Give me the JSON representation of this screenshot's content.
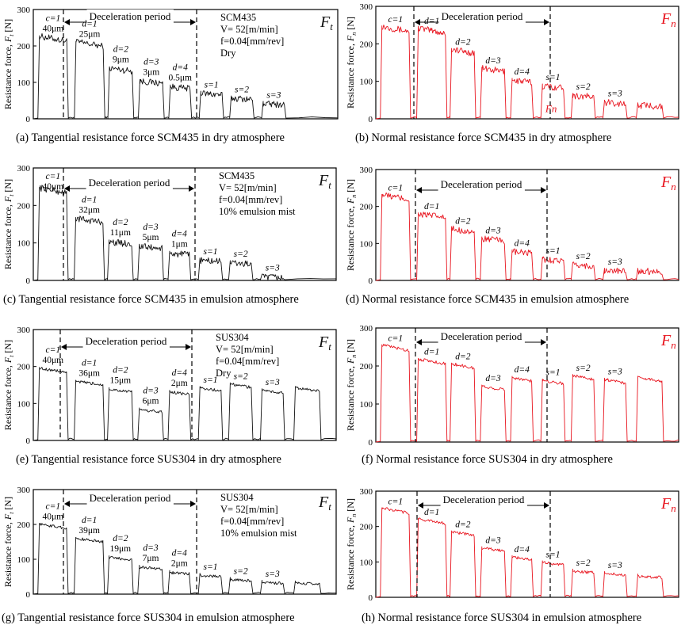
{
  "colors": {
    "tangential": "#111111",
    "normal": "#e8141e"
  },
  "common": {
    "ylabel_prefix": "Resistance force, ",
    "ylabel_unit": " [N]",
    "yticks": [
      0,
      100,
      200,
      300
    ]
  },
  "chart_data": [
    {
      "id": "a",
      "type": "line",
      "component": "t",
      "force_label": "F",
      "caption": "(a) Tangential resistance force SCM435 in dry atmosphere",
      "title": "Deceleration period",
      "info": [
        "SCM435",
        "V= 52[m/min]",
        "f=0.04[mm/rev]",
        "Dry"
      ],
      "ylim": [
        0,
        300
      ],
      "segments": [
        {
          "label": "c=1",
          "sub": "40μm",
          "value": 220
        },
        {
          "label": "d=1",
          "sub": "25μm",
          "value": 205
        },
        {
          "label": "d=2",
          "sub": "9μm",
          "value": 135
        },
        {
          "label": "d=3",
          "sub": "3μm",
          "value": 100
        },
        {
          "label": "d=4",
          "sub": "0.5μm",
          "value": 85
        },
        {
          "label": "s=1",
          "sub": "",
          "value": 68
        },
        {
          "label": "s=2",
          "sub": "",
          "value": 55
        },
        {
          "label": "s=3",
          "sub": "",
          "value": 40
        }
      ]
    },
    {
      "id": "b",
      "type": "line",
      "component": "n",
      "force_label": "F",
      "caption": "(b) Normal resistance force SCM435 in dry atmosphere",
      "title": "Deceleration period",
      "info": [],
      "inline_label": "Fn",
      "ylim": [
        0,
        300
      ],
      "segments": [
        {
          "label": "c=1",
          "sub": "",
          "value": 240
        },
        {
          "label": "d=1",
          "sub": "",
          "value": 235
        },
        {
          "label": "d=2",
          "sub": "",
          "value": 180
        },
        {
          "label": "d=3",
          "sub": "",
          "value": 130
        },
        {
          "label": "d=4",
          "sub": "",
          "value": 100
        },
        {
          "label": "s=1",
          "sub": "",
          "value": 85
        },
        {
          "label": "s=2",
          "sub": "",
          "value": 60
        },
        {
          "label": "s=3",
          "sub": "",
          "value": 42
        },
        {
          "label": "",
          "sub": "",
          "value": 35
        }
      ]
    },
    {
      "id": "c",
      "type": "line",
      "component": "t",
      "force_label": "F",
      "caption": "(c) Tangential resistance force SCM435 in emulsion atmosphere",
      "title": "Deceleration period",
      "info": [
        "SCM435",
        "V= 52[m/min]",
        "f=0.04[mm/rev]",
        "10% emulsion mist"
      ],
      "ylim": [
        0,
        300
      ],
      "segments": [
        {
          "label": "c=1",
          "sub": "40μm",
          "value": 240
        },
        {
          "label": "d=1",
          "sub": "32μm",
          "value": 160
        },
        {
          "label": "d=2",
          "sub": "11μm",
          "value": 100
        },
        {
          "label": "d=3",
          "sub": "5μm",
          "value": 88
        },
        {
          "label": "d=4",
          "sub": "1μm",
          "value": 70
        },
        {
          "label": "s=1",
          "sub": "",
          "value": 52
        },
        {
          "label": "s=2",
          "sub": "",
          "value": 45
        },
        {
          "label": "s=3",
          "sub": "",
          "value": 8
        }
      ]
    },
    {
      "id": "d",
      "type": "line",
      "component": "n",
      "force_label": "F",
      "caption": "(d) Normal resistance force SCM435 in emulsion atmosphere",
      "title": "Deceleration period",
      "info": [],
      "ylim": [
        0,
        300
      ],
      "segments": [
        {
          "label": "c=1",
          "sub": "",
          "value": 225
        },
        {
          "label": "d=1",
          "sub": "",
          "value": 175
        },
        {
          "label": "d=2",
          "sub": "",
          "value": 135
        },
        {
          "label": "d=3",
          "sub": "",
          "value": 110
        },
        {
          "label": "d=4",
          "sub": "",
          "value": 75
        },
        {
          "label": "s=1",
          "sub": "",
          "value": 55
        },
        {
          "label": "s=2",
          "sub": "",
          "value": 40
        },
        {
          "label": "s=3",
          "sub": "",
          "value": 25
        },
        {
          "label": "",
          "sub": "",
          "value": 25
        }
      ]
    },
    {
      "id": "e",
      "type": "line",
      "component": "t",
      "force_label": "F",
      "caption": "(e) Tangential resistance force SUS304 in dry atmosphere",
      "title": "Deceleration period",
      "info": [
        "SUS304",
        "V= 52[m/min]",
        "f=0.04[mm/rev]",
        "Dry"
      ],
      "ylim": [
        0,
        300
      ],
      "segments": [
        {
          "label": "c=1",
          "sub": "40μm",
          "value": 190
        },
        {
          "label": "d=1",
          "sub": "36μm",
          "value": 155
        },
        {
          "label": "d=2",
          "sub": "15μm",
          "value": 135
        },
        {
          "label": "d=3",
          "sub": "6μm",
          "value": 80
        },
        {
          "label": "d=4",
          "sub": "2μm",
          "value": 128
        },
        {
          "label": "s=1",
          "sub": "",
          "value": 138
        },
        {
          "label": "s=2",
          "sub": "",
          "value": 148
        },
        {
          "label": "s=3",
          "sub": "",
          "value": 132
        },
        {
          "label": "",
          "sub": "",
          "value": 138
        }
      ]
    },
    {
      "id": "f",
      "type": "line",
      "component": "n",
      "force_label": "F",
      "caption": "(f) Normal resistance force SUS304 in dry atmosphere",
      "title": "Deceleration period",
      "info": [],
      "ylim": [
        0,
        300
      ],
      "segments": [
        {
          "label": "c=1",
          "sub": "",
          "value": 248
        },
        {
          "label": "d=1",
          "sub": "",
          "value": 212
        },
        {
          "label": "d=2",
          "sub": "",
          "value": 200
        },
        {
          "label": "d=3",
          "sub": "",
          "value": 142
        },
        {
          "label": "d=4",
          "sub": "",
          "value": 165
        },
        {
          "label": "s=1",
          "sub": "",
          "value": 158
        },
        {
          "label": "s=2",
          "sub": "",
          "value": 170
        },
        {
          "label": "s=3",
          "sub": "",
          "value": 160
        },
        {
          "label": "",
          "sub": "",
          "value": 165
        }
      ]
    },
    {
      "id": "g",
      "type": "line",
      "component": "t",
      "force_label": "F",
      "caption": "(g) Tangential resistance force SUS304 in emulsion atmosphere",
      "title": "Deceleration period",
      "info": [
        "SUS304",
        "V= 52[m/min]",
        "f=0.04[mm/rev]",
        "10% emulsion mist"
      ],
      "ylim": [
        0,
        300
      ],
      "segments": [
        {
          "label": "c=1",
          "sub": "40μm",
          "value": 195
        },
        {
          "label": "d=1",
          "sub": "39μm",
          "value": 155
        },
        {
          "label": "d=2",
          "sub": "19μm",
          "value": 102
        },
        {
          "label": "d=3",
          "sub": "7μm",
          "value": 75
        },
        {
          "label": "d=4",
          "sub": "2μm",
          "value": 60
        },
        {
          "label": "s=1",
          "sub": "",
          "value": 52
        },
        {
          "label": "s=2",
          "sub": "",
          "value": 40
        },
        {
          "label": "s=3",
          "sub": "",
          "value": 32
        },
        {
          "label": "",
          "sub": "",
          "value": 30
        }
      ]
    },
    {
      "id": "h",
      "type": "line",
      "component": "n",
      "force_label": "F",
      "caption": "(h) Normal resistance force SUS304 in emulsion atmosphere",
      "title": "Deceleration period",
      "info": [],
      "ylim": [
        0,
        300
      ],
      "segments": [
        {
          "label": "c=1",
          "sub": "",
          "value": 245
        },
        {
          "label": "d=1",
          "sub": "",
          "value": 215
        },
        {
          "label": "d=2",
          "sub": "",
          "value": 180
        },
        {
          "label": "d=3",
          "sub": "",
          "value": 135
        },
        {
          "label": "d=4",
          "sub": "",
          "value": 110
        },
        {
          "label": "s=1",
          "sub": "",
          "value": 95
        },
        {
          "label": "s=2",
          "sub": "",
          "value": 72
        },
        {
          "label": "s=3",
          "sub": "",
          "value": 65
        },
        {
          "label": "",
          "sub": "",
          "value": 58
        }
      ]
    }
  ]
}
